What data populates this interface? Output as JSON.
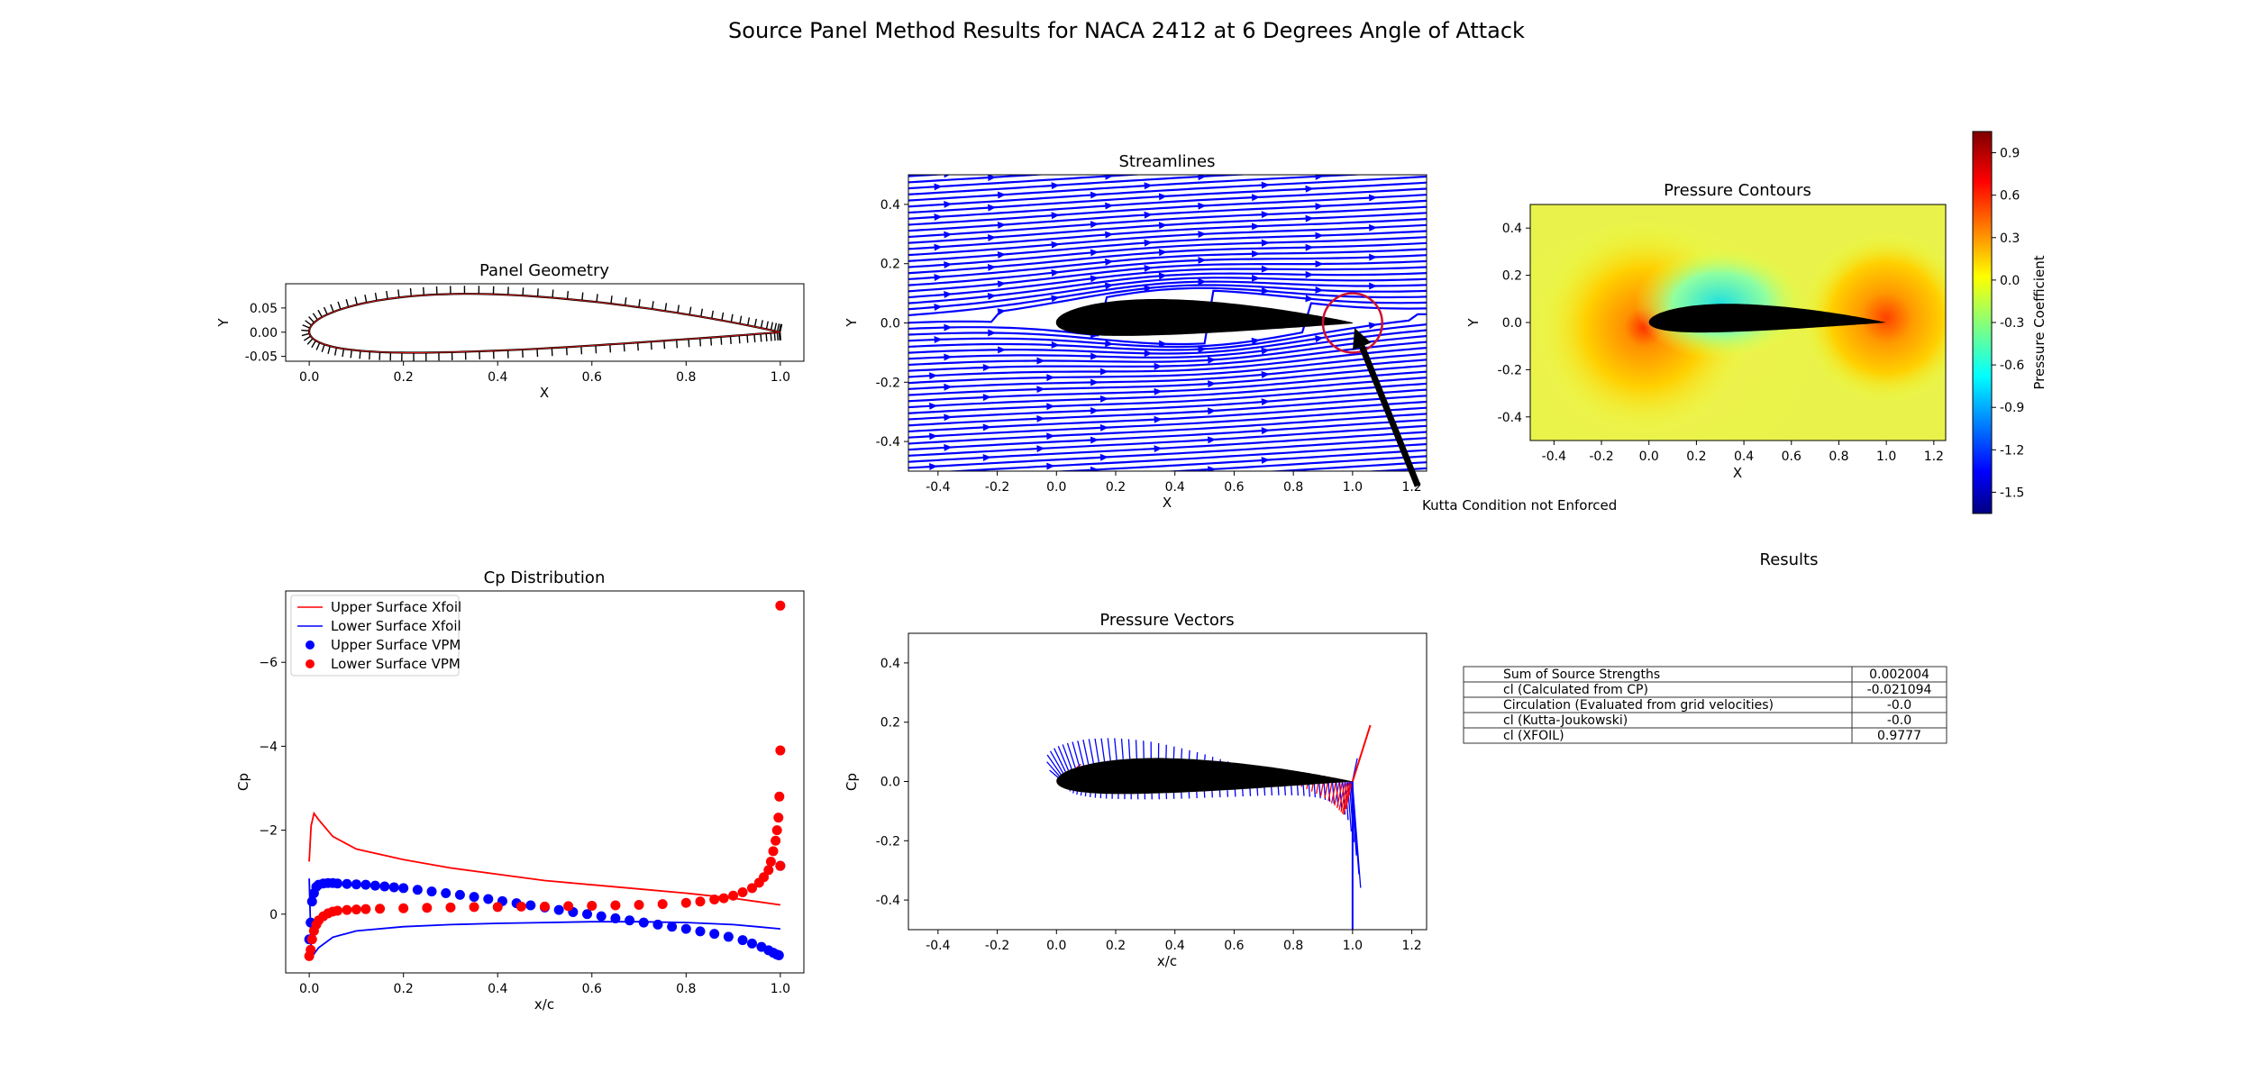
{
  "figure": {
    "title": "Source Panel Method Results for NACA 2412 at 6 Degrees Angle of Attack",
    "colors": {
      "upper": "#ff0000",
      "lower": "#0000ff",
      "airfoil": "#000000",
      "kutta_circle": "#cc1133"
    }
  },
  "chart_data": [
    {
      "id": "panel_geometry",
      "type": "line",
      "title": "Panel Geometry",
      "xlabel": "X",
      "ylabel": "Y",
      "xlim": [
        -0.05,
        1.05
      ],
      "ylim": [
        -0.06,
        0.1
      ],
      "xticks": [
        "0.0",
        "0.2",
        "0.4",
        "0.6",
        "0.8",
        "1.0"
      ],
      "yticks": [
        "0.05",
        "0.00",
        "-0.05"
      ],
      "airfoil": "NACA 2412",
      "panel_normals": true
    },
    {
      "id": "streamlines",
      "type": "line",
      "title": "Streamlines",
      "xlabel": "X",
      "ylabel": "Y",
      "xlim": [
        -0.5,
        1.25
      ],
      "ylim": [
        -0.5,
        0.5
      ],
      "xticks": [
        "-0.4",
        "-0.2",
        "0.0",
        "0.2",
        "0.4",
        "0.6",
        "0.8",
        "1.0",
        "1.2"
      ],
      "yticks": [
        "0.4",
        "0.2",
        "0.0",
        "-0.2",
        "-0.4"
      ],
      "angle_of_attack_deg": 6,
      "annotation": {
        "text": "Kutta Condition not Enforced",
        "circle_center": [
          1.0,
          0.0
        ],
        "circle_radius": 0.1,
        "text_at": [
          1.22,
          -0.55
        ]
      }
    },
    {
      "id": "pressure_contours",
      "type": "heatmap",
      "title": "Pressure Contours",
      "xlabel": "X",
      "ylabel": "Y",
      "xlim": [
        -0.5,
        1.25
      ],
      "ylim": [
        -0.5,
        0.5
      ],
      "xticks": [
        "-0.4",
        "-0.2",
        "0.0",
        "0.2",
        "0.4",
        "0.6",
        "0.8",
        "1.0",
        "1.2"
      ],
      "yticks": [
        "0.4",
        "0.2",
        "0.0",
        "-0.2",
        "-0.4"
      ],
      "colorbar": {
        "label": "Pressure Coefficient",
        "min": -1.65,
        "max": 1.05,
        "ticks": [
          "0.9",
          "0.6",
          "0.3",
          "0.0",
          "-0.3",
          "-0.6",
          "-0.9",
          "-1.2",
          "-1.5"
        ],
        "colormap": "jet"
      }
    },
    {
      "id": "cp_distribution",
      "type": "scatter",
      "title": "Cp Distribution",
      "xlabel": "x/c",
      "ylabel": "Cp",
      "xlim": [
        -0.05,
        1.05
      ],
      "ylim": [
        1.4,
        -7.7
      ],
      "y_inverted": true,
      "xticks": [
        "0.0",
        "0.2",
        "0.4",
        "0.6",
        "0.8",
        "1.0"
      ],
      "yticks": [
        "−6",
        "−4",
        "−2",
        "0"
      ],
      "legend_position": "top-left",
      "series": [
        {
          "name": "Upper Surface Xfoil",
          "kind": "line",
          "color": "#ff0000",
          "x": [
            0.0,
            0.004,
            0.01,
            0.02,
            0.05,
            0.1,
            0.2,
            0.3,
            0.4,
            0.5,
            0.6,
            0.7,
            0.8,
            0.9,
            0.95,
            1.0
          ],
          "y": [
            -1.25,
            -2.1,
            -2.4,
            -2.25,
            -1.85,
            -1.55,
            -1.3,
            -1.1,
            -0.95,
            -0.8,
            -0.7,
            -0.6,
            -0.5,
            -0.38,
            -0.3,
            -0.22
          ]
        },
        {
          "name": "Lower Surface Xfoil",
          "kind": "line",
          "color": "#0000ff",
          "x": [
            0.0,
            0.004,
            0.01,
            0.02,
            0.05,
            0.1,
            0.2,
            0.3,
            0.4,
            0.5,
            0.6,
            0.7,
            0.8,
            0.9,
            0.95,
            1.0
          ],
          "y": [
            -0.85,
            0.8,
            0.95,
            0.8,
            0.55,
            0.4,
            0.3,
            0.25,
            0.22,
            0.2,
            0.18,
            0.18,
            0.2,
            0.25,
            0.3,
            0.35
          ]
        },
        {
          "name": "Upper Surface VPM",
          "kind": "markers",
          "color": "#0000ff",
          "x": [
            0.0,
            0.003,
            0.006,
            0.01,
            0.015,
            0.02,
            0.03,
            0.04,
            0.05,
            0.06,
            0.08,
            0.1,
            0.12,
            0.14,
            0.16,
            0.18,
            0.2,
            0.23,
            0.26,
            0.29,
            0.32,
            0.35,
            0.38,
            0.41,
            0.44,
            0.47,
            0.5,
            0.53,
            0.56,
            0.59,
            0.62,
            0.65,
            0.68,
            0.71,
            0.74,
            0.77,
            0.8,
            0.83,
            0.86,
            0.89,
            0.92,
            0.94,
            0.96,
            0.975,
            0.985,
            0.992,
            0.997,
            1.0
          ],
          "y": [
            0.6,
            0.2,
            -0.3,
            -0.5,
            -0.65,
            -0.7,
            -0.73,
            -0.74,
            -0.74,
            -0.73,
            -0.72,
            -0.71,
            -0.7,
            -0.68,
            -0.66,
            -0.64,
            -0.62,
            -0.58,
            -0.54,
            -0.5,
            -0.46,
            -0.41,
            -0.36,
            -0.31,
            -0.26,
            -0.21,
            -0.16,
            -0.1,
            -0.05,
            0.0,
            0.05,
            0.1,
            0.15,
            0.2,
            0.25,
            0.3,
            0.35,
            0.41,
            0.47,
            0.54,
            0.62,
            0.7,
            0.78,
            0.86,
            0.92,
            0.96,
            0.98,
            -1.15
          ]
        },
        {
          "name": "Lower Surface VPM",
          "kind": "markers",
          "color": "#ff0000",
          "x": [
            0.0,
            0.003,
            0.006,
            0.01,
            0.015,
            0.02,
            0.03,
            0.04,
            0.05,
            0.06,
            0.08,
            0.1,
            0.12,
            0.15,
            0.2,
            0.25,
            0.3,
            0.35,
            0.4,
            0.45,
            0.5,
            0.55,
            0.6,
            0.65,
            0.7,
            0.75,
            0.8,
            0.83,
            0.86,
            0.88,
            0.9,
            0.92,
            0.94,
            0.955,
            0.965,
            0.975,
            0.98,
            0.985,
            0.99,
            0.993,
            0.996,
            0.998,
            1.0,
            1.0,
            1.0
          ],
          "y": [
            1.0,
            0.85,
            0.6,
            0.4,
            0.25,
            0.15,
            0.05,
            -0.02,
            -0.06,
            -0.08,
            -0.1,
            -0.11,
            -0.12,
            -0.13,
            -0.14,
            -0.15,
            -0.16,
            -0.17,
            -0.17,
            -0.18,
            -0.18,
            -0.19,
            -0.2,
            -0.21,
            -0.22,
            -0.24,
            -0.27,
            -0.3,
            -0.35,
            -0.38,
            -0.44,
            -0.52,
            -0.62,
            -0.75,
            -0.88,
            -1.05,
            -1.25,
            -1.5,
            -1.75,
            -2.0,
            -2.3,
            -2.8,
            -3.9,
            -7.35,
            -1.15
          ]
        }
      ]
    },
    {
      "id": "pressure_vectors",
      "type": "line",
      "title": "Pressure Vectors",
      "xlabel": "x/c",
      "ylabel": "Cp",
      "xlim": [
        -0.5,
        1.25
      ],
      "ylim": [
        -0.5,
        0.5
      ],
      "xticks": [
        "-0.4",
        "-0.2",
        "0.0",
        "0.2",
        "0.4",
        "0.6",
        "0.8",
        "1.0",
        "1.2"
      ],
      "yticks": [
        "0.4",
        "0.2",
        "0.0",
        "-0.2",
        "-0.4"
      ],
      "vector_colors": {
        "suction": "#0000ff",
        "pressure": "#ff0000"
      }
    }
  ],
  "results": {
    "title": "Results",
    "rows": [
      {
        "label": "Sum of Source Strengths",
        "value": "0.002004"
      },
      {
        "label": "cl (Calculated from CP)",
        "value": "-0.021094"
      },
      {
        "label": "Circulation (Evaluated from grid velocities)",
        "value": "-0.0"
      },
      {
        "label": "cl (Kutta-Joukowski)",
        "value": "-0.0"
      },
      {
        "label": "cl (XFOIL)",
        "value": "0.9777"
      }
    ]
  }
}
